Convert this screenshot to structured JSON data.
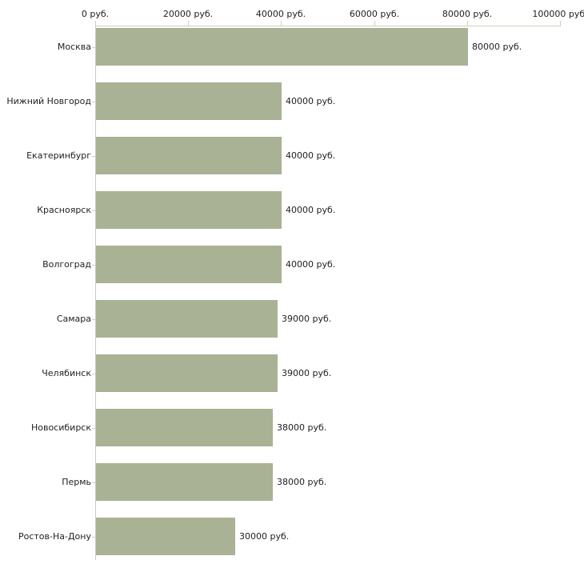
{
  "chart_data": {
    "type": "bar",
    "orientation": "horizontal",
    "title": "",
    "categories": [
      "Москва",
      "Нижний Новгород",
      "Екатеринбург",
      "Красноярск",
      "Волгоград",
      "Самара",
      "Челябинск",
      "Новосибирск",
      "Пермь",
      "Ростов-На-Дону"
    ],
    "values": [
      80000,
      40000,
      40000,
      40000,
      40000,
      39000,
      39000,
      38000,
      38000,
      30000
    ],
    "value_labels": [
      "80000 руб.",
      "40000 руб.",
      "40000 руб.",
      "40000 руб.",
      "40000 руб.",
      "39000 руб.",
      "39000 руб.",
      "38000 руб.",
      "38000 руб.",
      "30000 руб."
    ],
    "x_axis": {
      "position": "top",
      "range": [
        0,
        100000
      ],
      "ticks": [
        0,
        20000,
        40000,
        60000,
        80000,
        100000
      ],
      "tick_labels": [
        "0 руб.",
        "20000 руб.",
        "40000 руб.",
        "60000 руб.",
        "80000 руб.",
        "100000 руб."
      ]
    },
    "grid": false,
    "legend": false,
    "colors": {
      "bar_fill": "#a9b294",
      "x_axis_line": "#cfcfba",
      "x_tick": "#cfcfba",
      "y_axis_line": "#c9c9c9",
      "cat_tick": "#cfcfba",
      "text": "#222222",
      "background": "#ffffff"
    }
  }
}
